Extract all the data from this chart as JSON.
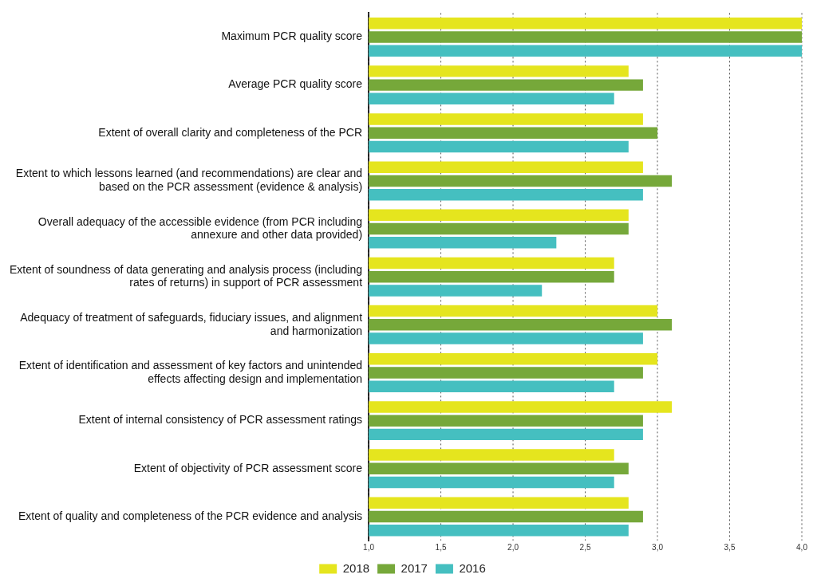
{
  "chart_data": {
    "type": "bar",
    "orientation": "horizontal",
    "categories": [
      "Maximum PCR quality score",
      "Average PCR quality score",
      "Extent of overall clarity and completeness of the PCR",
      "Extent to which lessons learned (and recommendations) are clear and based on the PCR assessment (evidence & analysis)",
      "Overall adequacy of the accessible evidence (from PCR including annexure and other data provided)",
      "Extent of soundness of data generating and analysis process (including rates of returns) in support of PCR assessment",
      "Adequacy of treatment of safeguards, fiduciary issues, and alignment and harmonization",
      "Extent of identification and assessment of key factors and unintended effects affecting design and implementation",
      "Extent of internal consistency of PCR assessment ratings",
      "Extent of objectivity of PCR assessment score",
      "Extent of quality and completeness of the PCR evidence and analysis"
    ],
    "series": [
      {
        "name": "2018",
        "color": "#e5e51e",
        "values": [
          4.0,
          2.8,
          2.9,
          2.9,
          2.8,
          2.7,
          3.0,
          3.0,
          3.1,
          2.7,
          2.8
        ]
      },
      {
        "name": "2017",
        "color": "#76a83a",
        "values": [
          4.0,
          2.9,
          3.0,
          3.1,
          2.8,
          2.7,
          3.1,
          2.9,
          2.9,
          2.8,
          2.9
        ]
      },
      {
        "name": "2016",
        "color": "#45bfc0",
        "values": [
          4.0,
          2.7,
          2.8,
          2.9,
          2.3,
          2.2,
          2.9,
          2.7,
          2.9,
          2.7,
          2.8
        ]
      }
    ],
    "xlim": [
      1.0,
      4.0
    ],
    "xticks": [
      {
        "value": 1.0,
        "label": "1,0"
      },
      {
        "value": 1.5,
        "label": "1,5"
      },
      {
        "value": 2.0,
        "label": "2,0"
      },
      {
        "value": 2.5,
        "label": "2,5"
      },
      {
        "value": 3.0,
        "label": "3,0"
      },
      {
        "value": 3.5,
        "label": "3,5"
      },
      {
        "value": 4.0,
        "label": "4,0"
      }
    ],
    "grid": "x",
    "legend": "bottom"
  }
}
